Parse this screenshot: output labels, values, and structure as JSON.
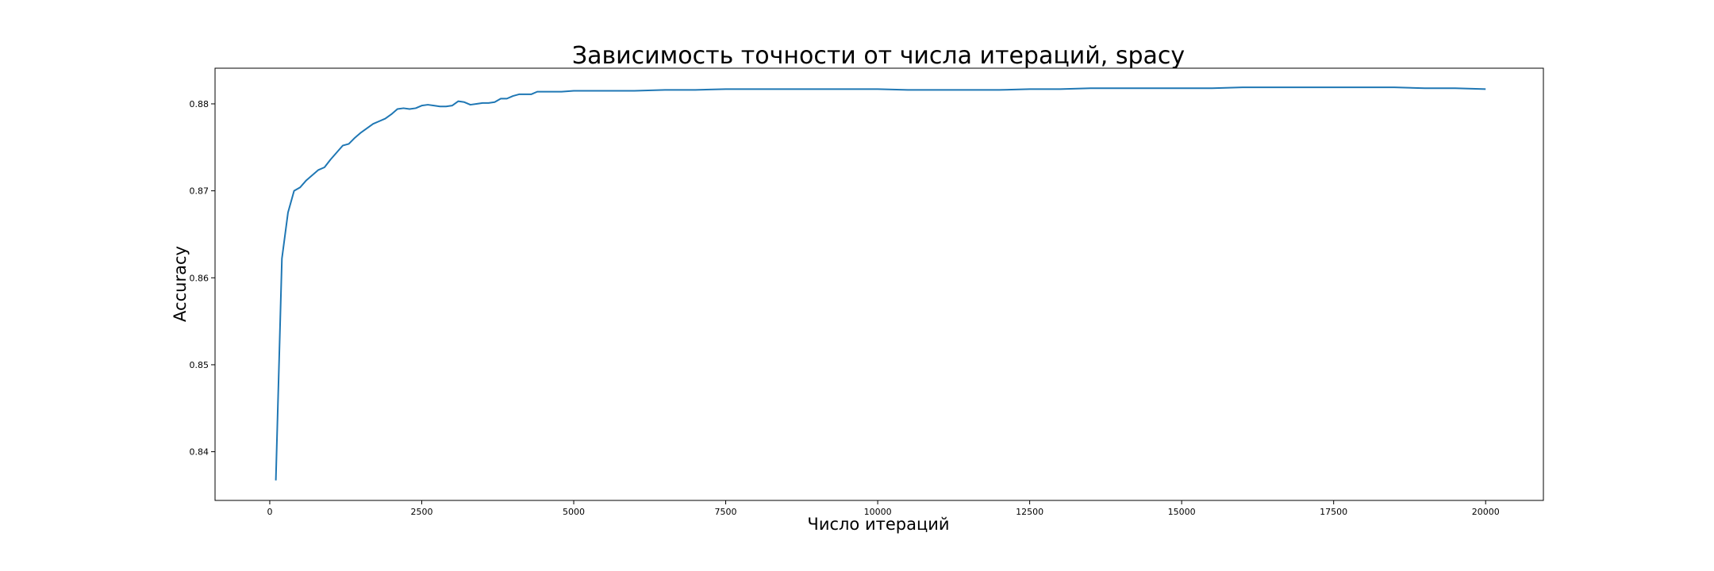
{
  "chart_data": {
    "type": "line",
    "title": "Зависимость точности от числа итераций, spacy",
    "xlabel": "Число итераций",
    "ylabel": "Accuracy",
    "xlim": [
      -900,
      20950
    ],
    "ylim": [
      0.8344,
      0.8841
    ],
    "x_ticks": [
      0,
      2500,
      5000,
      7500,
      10000,
      12500,
      15000,
      17500,
      20000
    ],
    "x_tick_labels": [
      "0",
      "2500",
      "5000",
      "7500",
      "10000",
      "12500",
      "15000",
      "17500",
      "20000"
    ],
    "y_ticks": [
      0.84,
      0.85,
      0.86,
      0.87,
      0.88
    ],
    "y_tick_labels": [
      "0.84",
      "0.85",
      "0.86",
      "0.87",
      "0.88"
    ],
    "grid": false,
    "legend": false,
    "series": [
      {
        "color": "#1f77b4",
        "x": [
          100,
          200,
          300,
          400,
          500,
          600,
          700,
          800,
          900,
          1000,
          1100,
          1200,
          1300,
          1400,
          1500,
          1600,
          1700,
          1800,
          1900,
          2000,
          2100,
          2200,
          2300,
          2400,
          2500,
          2600,
          2700,
          2800,
          2900,
          3000,
          3100,
          3200,
          3300,
          3400,
          3500,
          3600,
          3700,
          3800,
          3900,
          4000,
          4100,
          4200,
          4300,
          4400,
          4500,
          4600,
          4800,
          5000,
          5500,
          6000,
          6500,
          7000,
          7500,
          8000,
          9000,
          10000,
          10500,
          11000,
          11500,
          12000,
          12500,
          13000,
          13500,
          14000,
          14500,
          15000,
          15500,
          16000,
          16500,
          17000,
          17500,
          18000,
          18500,
          19000,
          19500,
          20000
        ],
        "y": [
          0.8367,
          0.8622,
          0.8675,
          0.87,
          0.8704,
          0.8712,
          0.8718,
          0.8724,
          0.8727,
          0.8736,
          0.8744,
          0.8752,
          0.8754,
          0.8761,
          0.8767,
          0.8772,
          0.8777,
          0.878,
          0.8783,
          0.8788,
          0.8794,
          0.8795,
          0.8794,
          0.8795,
          0.8798,
          0.8799,
          0.8798,
          0.8797,
          0.8797,
          0.8798,
          0.8803,
          0.8802,
          0.8799,
          0.88,
          0.8801,
          0.8801,
          0.8802,
          0.8806,
          0.8806,
          0.8809,
          0.8811,
          0.8811,
          0.8811,
          0.8814,
          0.8814,
          0.8814,
          0.8814,
          0.8815,
          0.8815,
          0.8815,
          0.8816,
          0.8816,
          0.8817,
          0.8817,
          0.8817,
          0.8817,
          0.8816,
          0.8816,
          0.8816,
          0.8816,
          0.8817,
          0.8817,
          0.8818,
          0.8818,
          0.8818,
          0.8818,
          0.8818,
          0.8819,
          0.8819,
          0.8819,
          0.8819,
          0.8819,
          0.8819,
          0.8818,
          0.8818,
          0.8817
        ]
      }
    ]
  }
}
